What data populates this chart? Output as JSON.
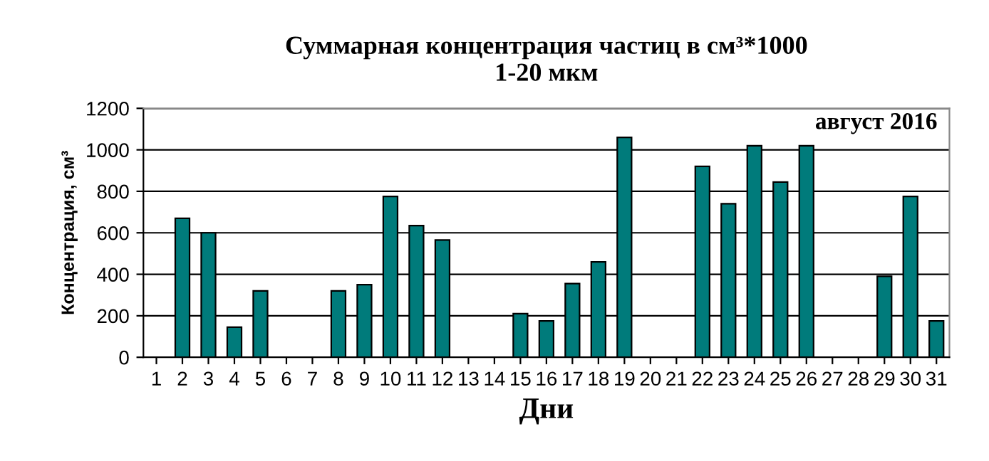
{
  "chart_data": {
    "type": "bar",
    "title": "Суммарная концентрация частиц в см³*1000\n1-20 мкм",
    "xlabel": "Дни",
    "ylabel": "Концентрация, см³",
    "categories": [
      "1",
      "2",
      "3",
      "4",
      "5",
      "6",
      "7",
      "8",
      "9",
      "10",
      "11",
      "12",
      "13",
      "14",
      "15",
      "16",
      "17",
      "18",
      "19",
      "20",
      "21",
      "22",
      "23",
      "24",
      "25",
      "26",
      "27",
      "28",
      "29",
      "30",
      "31"
    ],
    "values": [
      null,
      670,
      600,
      145,
      320,
      null,
      null,
      320,
      350,
      775,
      635,
      565,
      null,
      null,
      210,
      175,
      355,
      460,
      1060,
      null,
      null,
      920,
      740,
      1020,
      845,
      1020,
      null,
      null,
      390,
      775,
      175
    ],
    "color": "#007b7b",
    "ylim": [
      0,
      1200
    ],
    "yticks": [
      0,
      200,
      400,
      600,
      800,
      1000,
      1200
    ],
    "grid": "y",
    "legend": false,
    "annotations": [
      "август 2016"
    ]
  }
}
